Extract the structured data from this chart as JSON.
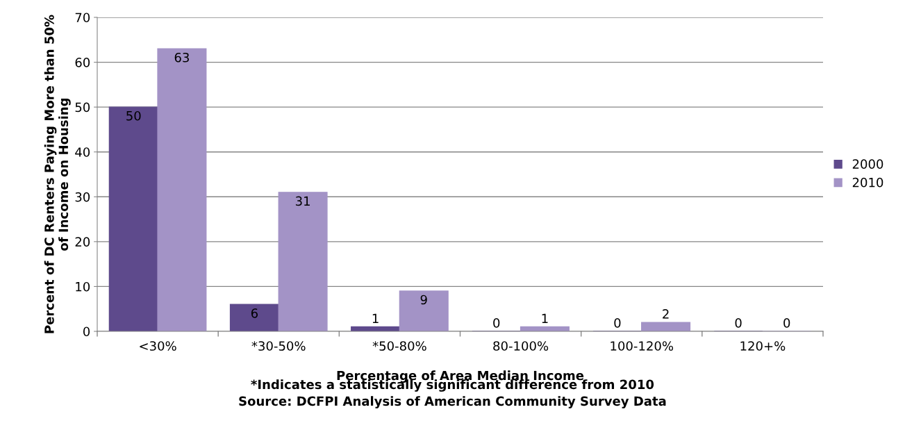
{
  "chart_data": {
    "type": "bar",
    "xlabel": "Percentage of Area Median Income",
    "ylabel": "Percent of DC Renters Paying More than 50%\nof Income on Housing",
    "categories": [
      "<30%",
      "*30-50%",
      "*50-80%",
      "80-100%",
      "100-120%",
      "120+%"
    ],
    "series": [
      {
        "name": "2000",
        "color": "#5e4a8c",
        "values": [
          50,
          6,
          1,
          0,
          0,
          0
        ]
      },
      {
        "name": "2010",
        "color": "#a393c6",
        "values": [
          63,
          31,
          9,
          1,
          2,
          0
        ]
      }
    ],
    "ylim": [
      0,
      70
    ],
    "yticks": [
      0,
      10,
      20,
      30,
      40,
      50,
      60,
      70
    ],
    "grid": "y",
    "legend": "right",
    "data_labels": true,
    "annotations": [
      "*Indicates a statistically significant difference from 2010",
      "Source: DCFPI Analysis of American Community Survey Data"
    ]
  }
}
